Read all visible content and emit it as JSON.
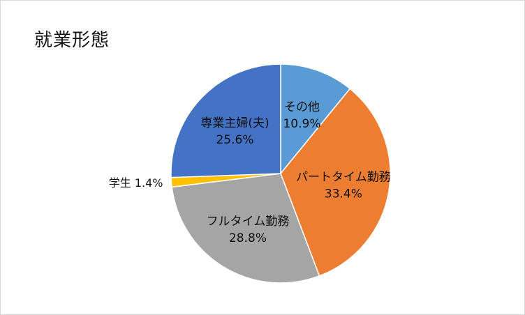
{
  "chart_data": {
    "type": "pie",
    "title": "就業形態",
    "start_angle_deg": 0,
    "direction": "clockwise",
    "slices": [
      {
        "label": "その他",
        "value": 10.9,
        "display": "10.9%",
        "color": "#5b9bd5",
        "label_placement": "inside"
      },
      {
        "label": "パートタイム勤務",
        "value": 33.4,
        "display": "33.4%",
        "color": "#ed7d31",
        "label_placement": "inside"
      },
      {
        "label": "フルタイム勤務",
        "value": 28.8,
        "display": "28.8%",
        "color": "#a5a5a5",
        "label_placement": "inside"
      },
      {
        "label": "学生",
        "value": 1.4,
        "display": "1.4%",
        "color": "#ffc000",
        "label_placement": "outside"
      },
      {
        "label": "専業主婦(夫)",
        "value": 25.6,
        "display": "25.6%",
        "color": "#4472c4",
        "label_placement": "inside"
      }
    ]
  }
}
